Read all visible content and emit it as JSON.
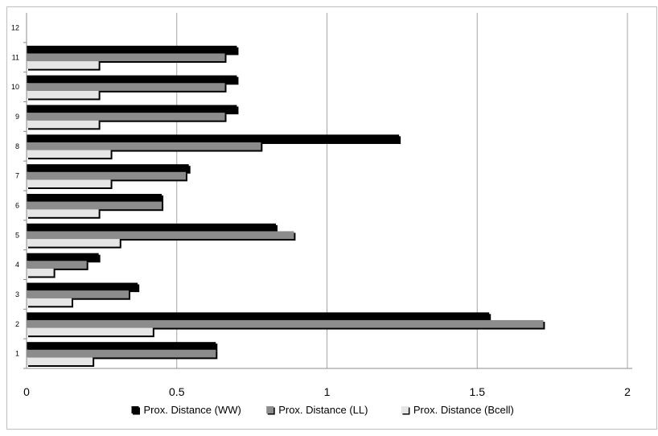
{
  "chart_data": {
    "type": "bar",
    "orientation": "horizontal",
    "categories": [
      "1",
      "2",
      "3",
      "4",
      "5",
      "6",
      "7",
      "8",
      "9",
      "10",
      "11",
      "12"
    ],
    "series": [
      {
        "name": "Prox. Distance (WW)",
        "color": "#000000",
        "values": [
          0.63,
          1.54,
          0.37,
          0.24,
          0.83,
          0.45,
          0.54,
          1.24,
          0.7,
          0.7,
          0.7,
          null
        ]
      },
      {
        "name": "Prox. Distance (LL)",
        "color": "#8c8c8c",
        "values": [
          0.63,
          1.72,
          0.34,
          0.2,
          0.89,
          0.45,
          0.53,
          0.78,
          0.66,
          0.66,
          0.66,
          null
        ]
      },
      {
        "name": "Prox. Distance (Bcell)",
        "color": "#e6e6e6",
        "values": [
          0.22,
          0.42,
          0.15,
          0.09,
          0.31,
          0.24,
          0.28,
          0.28,
          0.24,
          0.24,
          0.24,
          null
        ]
      }
    ],
    "xlim": [
      0,
      2
    ],
    "x_ticks": [
      "0",
      "0.5",
      "1",
      "1.5",
      "2"
    ],
    "grid": "vertical",
    "legend_position": "bottom",
    "title": "",
    "xlabel": "",
    "ylabel": ""
  }
}
